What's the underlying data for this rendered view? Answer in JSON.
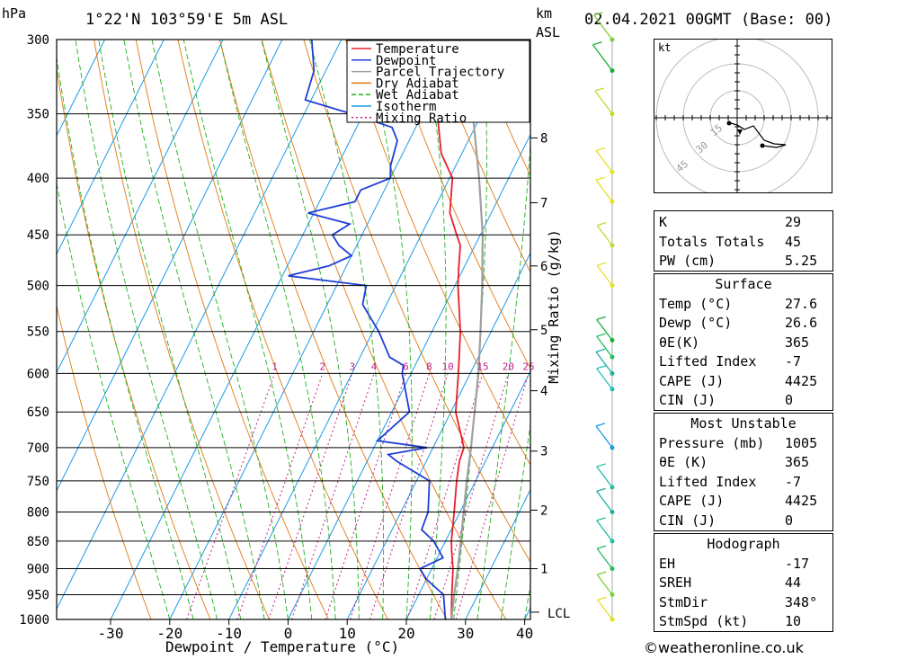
{
  "header": {
    "hpa_label": "hPa",
    "location": "1°22'N  103°59'E  5m  ASL",
    "km_label": "km",
    "asl_label": "ASL",
    "datetime": "02.04.2021  00GMT  (Base: 00)"
  },
  "axes": {
    "xlabel": "Dewpoint / Temperature (°C)",
    "mixing_label": "Mixing Ratio (g/kg)",
    "lcl_label": "LCL"
  },
  "credit": "©weatheronline.co.uk",
  "hodograph": {
    "unit_label": "kt",
    "ring_labels": [
      "15",
      "30",
      "45"
    ]
  },
  "indices": [
    {
      "label": "K",
      "value": "29"
    },
    {
      "label": "Totals Totals",
      "value": "45"
    },
    {
      "label": "PW (cm)",
      "value": "5.25"
    }
  ],
  "surface": {
    "title": "Surface",
    "rows": [
      {
        "label": "Temp (°C)",
        "value": "27.6"
      },
      {
        "label": "Dewp (°C)",
        "value": "26.6"
      },
      {
        "label": "θE(K)",
        "value": "365"
      },
      {
        "label": "Lifted Index",
        "value": "-7"
      },
      {
        "label": "CAPE (J)",
        "value": "4425"
      },
      {
        "label": "CIN (J)",
        "value": "0"
      }
    ]
  },
  "most_unstable": {
    "title": "Most Unstable",
    "rows": [
      {
        "label": "Pressure (mb)",
        "value": "1005"
      },
      {
        "label": "θE (K)",
        "value": "365"
      },
      {
        "label": "Lifted Index",
        "value": "-7"
      },
      {
        "label": "CAPE (J)",
        "value": "4425"
      },
      {
        "label": "CIN (J)",
        "value": "0"
      }
    ]
  },
  "hodograph_table": {
    "title": "Hodograph",
    "rows": [
      {
        "label": "EH",
        "value": "-17"
      },
      {
        "label": "SREH",
        "value": "44"
      },
      {
        "label": "StmDir",
        "value": "348°"
      },
      {
        "label": "StmSpd (kt)",
        "value": "10"
      }
    ]
  },
  "chart_data": {
    "type": "line",
    "subtype": "skew-T log-p",
    "xlabel": "Dewpoint / Temperature (°C)",
    "ylabel": "hPa",
    "x_ticks": [
      -30,
      -20,
      -10,
      0,
      10,
      20,
      30,
      40
    ],
    "y_ticks": [
      300,
      350,
      400,
      450,
      500,
      550,
      600,
      650,
      700,
      750,
      800,
      850,
      900,
      950,
      1000
    ],
    "xlim": [
      -40,
      40
    ],
    "ylim": [
      1000,
      300
    ],
    "y_scale": "log",
    "km_ticks": [
      {
        "km": 1,
        "p": 900
      },
      {
        "km": 2,
        "p": 797
      },
      {
        "km": 3,
        "p": 705
      },
      {
        "km": 4,
        "p": 622
      },
      {
        "km": 5,
        "p": 548
      },
      {
        "km": 6,
        "p": 480
      },
      {
        "km": 7,
        "p": 421
      },
      {
        "km": 8,
        "p": 368
      }
    ],
    "mixing_ratio_labels": [
      "1",
      "2",
      "3",
      "4",
      "6",
      "8",
      "10",
      "15",
      "20",
      "25"
    ],
    "mixing_ratio_values": [
      1,
      2,
      3,
      4,
      6,
      8,
      10,
      15,
      20,
      25
    ],
    "legend": [
      "Temperature",
      "Dewpoint",
      "Parcel Trajectory",
      "Dry Adiabat",
      "Wet Adiabat",
      "Isotherm",
      "Mixing Ratio"
    ],
    "legend_placement": "top-right",
    "colors": {
      "temperature": "#e8202a",
      "dewpoint": "#1f3fd6",
      "parcel": "#a0a0a0",
      "dry_adiabat": "#e07a10",
      "wet_adiabat": "#20b020",
      "isotherm": "#1a9be6",
      "mixing_ratio": "#c0208a"
    },
    "series": [
      {
        "name": "Temperature",
        "points": [
          [
            1000,
            27.6
          ],
          [
            950,
            25.6
          ],
          [
            900,
            23.6
          ],
          [
            870,
            22.0
          ],
          [
            850,
            21.0
          ],
          [
            800,
            19.0
          ],
          [
            750,
            16.8
          ],
          [
            720,
            15.6
          ],
          [
            700,
            15.2
          ],
          [
            680,
            13.5
          ],
          [
            650,
            10.8
          ],
          [
            600,
            8.0
          ],
          [
            550,
            4.8
          ],
          [
            500,
            0.5
          ],
          [
            480,
            -1.0
          ],
          [
            460,
            -2.5
          ],
          [
            450,
            -4.0
          ],
          [
            430,
            -7.0
          ],
          [
            400,
            -9.5
          ],
          [
            380,
            -13.5
          ],
          [
            350,
            -17.5
          ],
          [
            330,
            -22.0
          ],
          [
            300,
            -27.5
          ]
        ]
      },
      {
        "name": "Dewpoint",
        "points": [
          [
            1000,
            26.6
          ],
          [
            950,
            24.2
          ],
          [
            920,
            20.0
          ],
          [
            900,
            18.0
          ],
          [
            880,
            21.0
          ],
          [
            850,
            18.0
          ],
          [
            830,
            15.0
          ],
          [
            800,
            14.6
          ],
          [
            750,
            12.2
          ],
          [
            720,
            5.0
          ],
          [
            710,
            3.0
          ],
          [
            700,
            9.0
          ],
          [
            690,
            0.0
          ],
          [
            650,
            3.0
          ],
          [
            600,
            -1.5
          ],
          [
            590,
            -2.0
          ],
          [
            580,
            -5.0
          ],
          [
            550,
            -9.0
          ],
          [
            520,
            -14.0
          ],
          [
            500,
            -15.0
          ],
          [
            490,
            -29.0
          ],
          [
            480,
            -23.0
          ],
          [
            470,
            -20.0
          ],
          [
            460,
            -23.0
          ],
          [
            450,
            -25.0
          ],
          [
            440,
            -23.0
          ],
          [
            430,
            -31.0
          ],
          [
            420,
            -24.0
          ],
          [
            410,
            -24.0
          ],
          [
            400,
            -20.0
          ],
          [
            390,
            -21.0
          ],
          [
            370,
            -22.0
          ],
          [
            360,
            -24.0
          ],
          [
            350,
            -32.0
          ],
          [
            340,
            -41.0
          ],
          [
            320,
            -42.0
          ],
          [
            300,
            -45.0
          ]
        ]
      },
      {
        "name": "Parcel Trajectory",
        "points": [
          [
            1000,
            27.6
          ],
          [
            980,
            27.0
          ],
          [
            950,
            26.0
          ],
          [
            900,
            24.4
          ],
          [
            850,
            22.6
          ],
          [
            800,
            20.6
          ],
          [
            750,
            18.5
          ],
          [
            700,
            16.4
          ],
          [
            650,
            14.0
          ],
          [
            600,
            11.4
          ],
          [
            550,
            8.2
          ],
          [
            500,
            4.6
          ],
          [
            450,
            0.4
          ],
          [
            400,
            -5.0
          ],
          [
            350,
            -11.5
          ],
          [
            300,
            -19.5
          ]
        ]
      }
    ]
  }
}
